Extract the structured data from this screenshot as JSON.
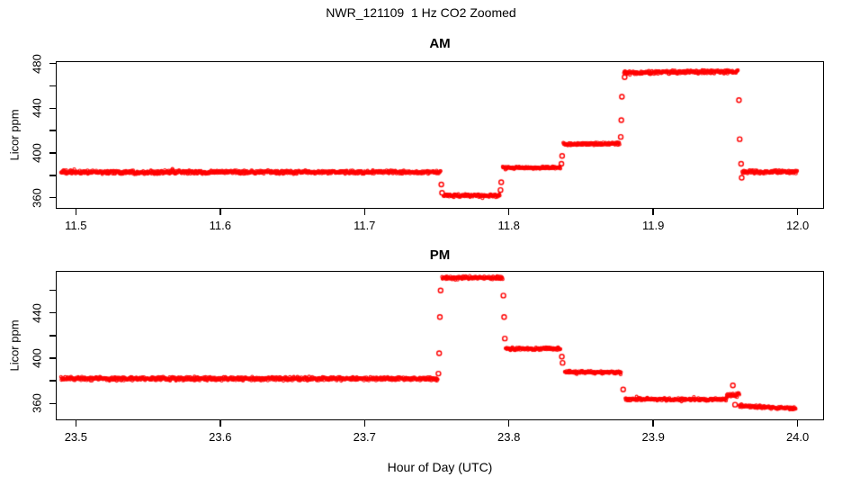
{
  "page": {
    "title": "NWR_121109  1 Hz CO2 Zoomed",
    "xlabel": "Hour of Day (UTC)",
    "background": "#FFFFFF",
    "text_color": "#000000"
  },
  "chart_data": [
    {
      "type": "scatter",
      "panel": "AM",
      "title": "AM",
      "ylabel": "Licor ppm",
      "marker": "open-circle",
      "point_color": "#FF0000",
      "sample_rate_hz": 1,
      "xlim": [
        11.487,
        12.018
      ],
      "ylim": [
        350.5,
        481.0
      ],
      "xticks": [
        11.5,
        11.6,
        11.7,
        11.8,
        11.9,
        12.0
      ],
      "xtick_labels": [
        "11.5",
        "11.6",
        "11.7",
        "11.8",
        "11.9",
        "12.0"
      ],
      "yticks": [
        360,
        380,
        400,
        420,
        440,
        460,
        480
      ],
      "ytick_labels": [
        "360",
        "",
        "400",
        "",
        "440",
        "",
        "480"
      ],
      "grid": false,
      "segments": [
        {
          "x_start": 11.49,
          "x_end": 11.753,
          "y_start": 382.5,
          "y_end": 382.5,
          "noise": 1.3
        },
        {
          "x_start": 11.755,
          "x_end": 11.794,
          "y_start": 361.5,
          "y_end": 361.5,
          "noise": 1.1
        },
        {
          "x_start": 11.796,
          "x_end": 11.836,
          "y_start": 386.5,
          "y_end": 386.5,
          "noise": 1.0
        },
        {
          "x_start": 11.838,
          "x_end": 11.877,
          "y_start": 407.5,
          "y_end": 408.0,
          "noise": 1.0
        },
        {
          "x_start": 11.88,
          "x_end": 11.959,
          "y_start": 471.5,
          "y_end": 472.5,
          "noise": 1.2
        },
        {
          "x_start": 11.962,
          "x_end": 12.0,
          "y_start": 382.5,
          "y_end": 383.0,
          "noise": 1.3
        }
      ],
      "transition_points": [
        {
          "x": 11.7535,
          "y": 371.5
        },
        {
          "x": 11.754,
          "y": 364.0
        },
        {
          "x": 11.7945,
          "y": 366.5
        },
        {
          "x": 11.795,
          "y": 373.5
        },
        {
          "x": 11.8367,
          "y": 390.0
        },
        {
          "x": 11.8372,
          "y": 397.0
        },
        {
          "x": 11.8778,
          "y": 414.0
        },
        {
          "x": 11.8782,
          "y": 429.0
        },
        {
          "x": 11.8786,
          "y": 450.0
        },
        {
          "x": 11.8805,
          "y": 467.5
        },
        {
          "x": 11.9597,
          "y": 447.0
        },
        {
          "x": 11.9602,
          "y": 412.0
        },
        {
          "x": 11.9612,
          "y": 390.0
        },
        {
          "x": 11.9616,
          "y": 377.5
        }
      ]
    },
    {
      "type": "scatter",
      "panel": "PM",
      "title": "PM",
      "ylabel": "Licor ppm",
      "marker": "open-circle",
      "point_color": "#FF0000",
      "sample_rate_hz": 1,
      "xlim": [
        23.487,
        24.018
      ],
      "ylim": [
        345.5,
        476.0
      ],
      "xticks": [
        23.5,
        23.6,
        23.7,
        23.8,
        23.9,
        24.0
      ],
      "xtick_labels": [
        "23.5",
        "23.6",
        "23.7",
        "23.8",
        "23.9",
        "24.0"
      ],
      "yticks": [
        360,
        380,
        400,
        420,
        440,
        460
      ],
      "ytick_labels": [
        "360",
        "",
        "400",
        "",
        "440",
        ""
      ],
      "grid": false,
      "segments": [
        {
          "x_start": 23.49,
          "x_end": 23.751,
          "y_start": 381.5,
          "y_end": 381.5,
          "noise": 1.3
        },
        {
          "x_start": 23.754,
          "x_end": 23.796,
          "y_start": 470.5,
          "y_end": 471.0,
          "noise": 1.2
        },
        {
          "x_start": 23.798,
          "x_end": 23.836,
          "y_start": 408.0,
          "y_end": 408.0,
          "noise": 1.0
        },
        {
          "x_start": 23.839,
          "x_end": 23.878,
          "y_start": 387.5,
          "y_end": 387.0,
          "noise": 1.0
        },
        {
          "x_start": 23.881,
          "x_end": 23.951,
          "y_start": 363.5,
          "y_end": 363.0,
          "noise": 1.0
        },
        {
          "x_start": 23.951,
          "x_end": 23.96,
          "y_start": 366.0,
          "y_end": 367.5,
          "noise": 1.4
        },
        {
          "x_start": 23.96,
          "x_end": 23.999,
          "y_start": 357.5,
          "y_end": 355.0,
          "noise": 1.0
        }
      ],
      "transition_points": [
        {
          "x": 23.7515,
          "y": 386.0
        },
        {
          "x": 23.752,
          "y": 404.0
        },
        {
          "x": 23.7525,
          "y": 436.0
        },
        {
          "x": 23.753,
          "y": 459.5
        },
        {
          "x": 23.7965,
          "y": 455.0
        },
        {
          "x": 23.797,
          "y": 436.0
        },
        {
          "x": 23.7975,
          "y": 417.0
        },
        {
          "x": 23.837,
          "y": 401.0
        },
        {
          "x": 23.8375,
          "y": 395.5
        },
        {
          "x": 23.8795,
          "y": 372.0
        },
        {
          "x": 23.9555,
          "y": 375.5
        },
        {
          "x": 23.957,
          "y": 358.5
        }
      ]
    }
  ]
}
